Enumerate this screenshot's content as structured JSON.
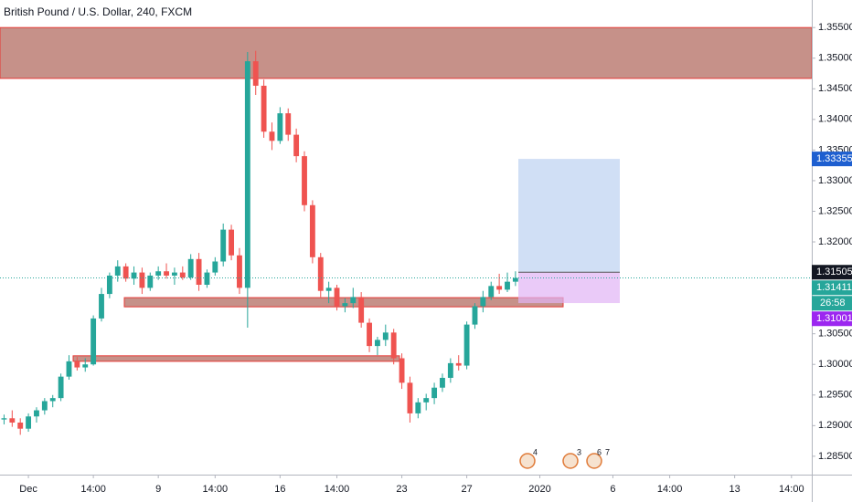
{
  "chart_data": {
    "type": "candlestick",
    "title": "British Pound / U.S. Dollar, 240, FXCM",
    "categories": [
      null,
      null,
      null,
      "Dec",
      null,
      null,
      null,
      null,
      null,
      null,
      null,
      "14:00",
      null,
      null,
      null,
      null,
      null,
      null,
      null,
      "9",
      null,
      null,
      null,
      null,
      null,
      null,
      "14:00",
      null,
      null,
      null,
      null,
      null,
      null,
      null,
      "16",
      null,
      null,
      null,
      null,
      null,
      null,
      "14:00",
      null,
      null,
      null,
      null,
      null,
      null,
      null,
      "23",
      null,
      null,
      null,
      null,
      null,
      null,
      null,
      "27",
      null,
      null,
      null,
      null,
      null,
      null,
      null,
      null,
      "2020",
      null,
      null,
      null,
      null,
      null,
      null,
      null,
      null,
      "6",
      null,
      null,
      null,
      null,
      null,
      null,
      "14:00",
      null,
      null,
      null,
      null,
      null,
      null,
      null,
      "13",
      null,
      null,
      null,
      null,
      null,
      null,
      "14:00",
      null,
      null
    ],
    "open": [
      1.291,
      1.2912,
      1.2905,
      1.2895,
      1.2915,
      1.2925,
      1.294,
      1.2945,
      1.298,
      1.3005,
      1.2995,
      1.3,
      1.3075,
      1.3115,
      1.3145,
      1.316,
      1.314,
      1.315,
      1.3125,
      1.3145,
      1.3152,
      1.3145,
      1.315,
      1.3142,
      1.3172,
      1.313,
      1.315,
      1.3168,
      1.322,
      1.3178,
      1.3125,
      1.3495,
      1.3455,
      1.338,
      1.3365,
      1.341,
      1.3375,
      1.334,
      1.326,
      1.3175,
      1.312,
      1.3125,
      1.3095,
      1.31,
      1.311,
      1.3068,
      1.303,
      1.304,
      1.3052,
      1.301,
      1.297,
      1.292,
      1.2938,
      1.2945,
      1.2962,
      1.2978,
      1.3002,
      1.2998,
      1.3065,
      1.3095,
      1.311,
      1.3128,
      1.3122,
      1.3135,
      null,
      null,
      null,
      null,
      null,
      null,
      null,
      null,
      null,
      null,
      null,
      null,
      null,
      null,
      null,
      null,
      null,
      null,
      null,
      null,
      null,
      null,
      null,
      null,
      null,
      null,
      null,
      null,
      null,
      null,
      null,
      null,
      null,
      null,
      null,
      null
    ],
    "high": [
      1.2918,
      1.2925,
      1.2912,
      1.292,
      1.293,
      1.2945,
      1.295,
      1.2985,
      1.3015,
      1.3012,
      1.301,
      1.308,
      1.3125,
      1.315,
      1.317,
      1.3165,
      1.316,
      1.3158,
      1.315,
      1.316,
      1.3165,
      1.3158,
      1.316,
      1.318,
      1.3182,
      1.3155,
      1.3175,
      1.323,
      1.3228,
      1.319,
      1.351,
      1.3512,
      1.3465,
      1.3395,
      1.342,
      1.3418,
      1.3385,
      1.3348,
      1.3268,
      1.3182,
      1.3135,
      1.313,
      1.3108,
      1.3125,
      1.3118,
      1.3075,
      1.3045,
      1.3065,
      1.3058,
      1.3018,
      1.298,
      1.2945,
      1.2952,
      1.297,
      1.2985,
      1.301,
      1.3015,
      1.307,
      1.31,
      1.312,
      1.3135,
      1.3148,
      1.315,
      1.3152,
      null,
      null,
      null,
      null,
      null,
      null,
      null,
      null,
      null,
      null,
      null,
      null,
      null,
      null,
      null,
      null,
      null,
      null,
      null,
      null,
      null,
      null,
      null,
      null,
      null,
      null,
      null,
      null,
      null,
      null,
      null,
      null,
      null,
      null,
      null,
      null
    ],
    "low": [
      1.2902,
      1.2898,
      1.2885,
      1.289,
      1.2905,
      1.2918,
      1.293,
      1.294,
      1.2975,
      1.299,
      1.2988,
      1.2998,
      1.307,
      1.3108,
      1.3135,
      1.3135,
      1.313,
      1.3115,
      1.312,
      1.3138,
      1.314,
      1.313,
      1.3138,
      1.3138,
      1.312,
      1.3125,
      1.3145,
      1.316,
      1.317,
      1.3115,
      1.306,
      1.344,
      1.337,
      1.335,
      1.336,
      1.3365,
      1.333,
      1.325,
      1.3165,
      1.311,
      1.31,
      1.3088,
      1.3085,
      1.3092,
      1.306,
      1.302,
      1.3015,
      1.303,
      1.3,
      1.296,
      1.2905,
      1.2912,
      1.2925,
      1.2935,
      1.2955,
      1.297,
      1.299,
      1.2992,
      1.3058,
      1.3085,
      1.3105,
      1.3115,
      1.3118,
      1.3128,
      null,
      null,
      null,
      null,
      null,
      null,
      null,
      null,
      null,
      null,
      null,
      null,
      null,
      null,
      null,
      null,
      null,
      null,
      null,
      null,
      null,
      null,
      null,
      null,
      null,
      null,
      null,
      null,
      null,
      null,
      null,
      null,
      null,
      null,
      null,
      null
    ],
    "close": [
      1.2912,
      1.2905,
      1.2895,
      1.2915,
      1.2925,
      1.294,
      1.2945,
      1.298,
      1.3005,
      1.2995,
      1.3,
      1.3075,
      1.3115,
      1.3145,
      1.316,
      1.314,
      1.315,
      1.3125,
      1.3145,
      1.3152,
      1.3145,
      1.315,
      1.3142,
      1.3172,
      1.313,
      1.315,
      1.3168,
      1.322,
      1.3178,
      1.3125,
      1.3495,
      1.3455,
      1.338,
      1.3365,
      1.341,
      1.3375,
      1.334,
      1.326,
      1.3175,
      1.312,
      1.3125,
      1.3095,
      1.31,
      1.311,
      1.3068,
      1.303,
      1.304,
      1.3052,
      1.301,
      1.297,
      1.292,
      1.2938,
      1.2945,
      1.2962,
      1.2978,
      1.3002,
      1.2998,
      1.3065,
      1.3095,
      1.311,
      1.3128,
      1.3122,
      1.3135,
      1.31411,
      null,
      null,
      null,
      null,
      null,
      null,
      null,
      null,
      null,
      null,
      null,
      null,
      null,
      null,
      null,
      null,
      null,
      null,
      null,
      null,
      null,
      null,
      null,
      null,
      null,
      null,
      null,
      null,
      null,
      null,
      null,
      null,
      null,
      null,
      null,
      null
    ],
    "up_color": "#26a69a",
    "down_color": "#ef5350",
    "ylim": [
      1.282,
      1.3595
    ],
    "yticks": [
      {
        "value": 1.285,
        "label": "1.28500"
      },
      {
        "value": 1.29,
        "label": "1.29000"
      },
      {
        "value": 1.295,
        "label": "1.29500"
      },
      {
        "value": 1.3,
        "label": "1.30000"
      },
      {
        "value": 1.305,
        "label": "1.30500"
      },
      {
        "value": 1.31,
        "label": "1.31000"
      },
      {
        "value": 1.315,
        "label": "1.31500"
      },
      {
        "value": 1.32,
        "label": "1.32000"
      },
      {
        "value": 1.325,
        "label": "1.32500"
      },
      {
        "value": 1.33,
        "label": "1.33000"
      },
      {
        "value": 1.335,
        "label": "1.33500"
      },
      {
        "value": 1.34,
        "label": "1.34000"
      },
      {
        "value": 1.345,
        "label": "1.34500"
      },
      {
        "value": 1.35,
        "label": "1.35000"
      },
      {
        "value": 1.355,
        "label": "1.35500"
      }
    ],
    "grid": false,
    "zones": [
      {
        "range": [
          1.3467,
          1.355
        ],
        "color": "#a0483a"
      },
      {
        "range": [
          1.3094,
          1.3109
        ],
        "color": "#a0483a"
      },
      {
        "range": [
          1.3005,
          1.3014
        ],
        "color": "#a0483a"
      }
    ],
    "position": {
      "target": 1.33355,
      "entry": 1.31505,
      "stop": 1.31001,
      "target_color": "#1e5fd0",
      "entry_color": "#131722",
      "stop_color": "#9c27f0"
    },
    "last_price_color": "#26a69a",
    "countdown": "26:58",
    "events": [
      "4",
      "3",
      "6",
      "7"
    ]
  }
}
